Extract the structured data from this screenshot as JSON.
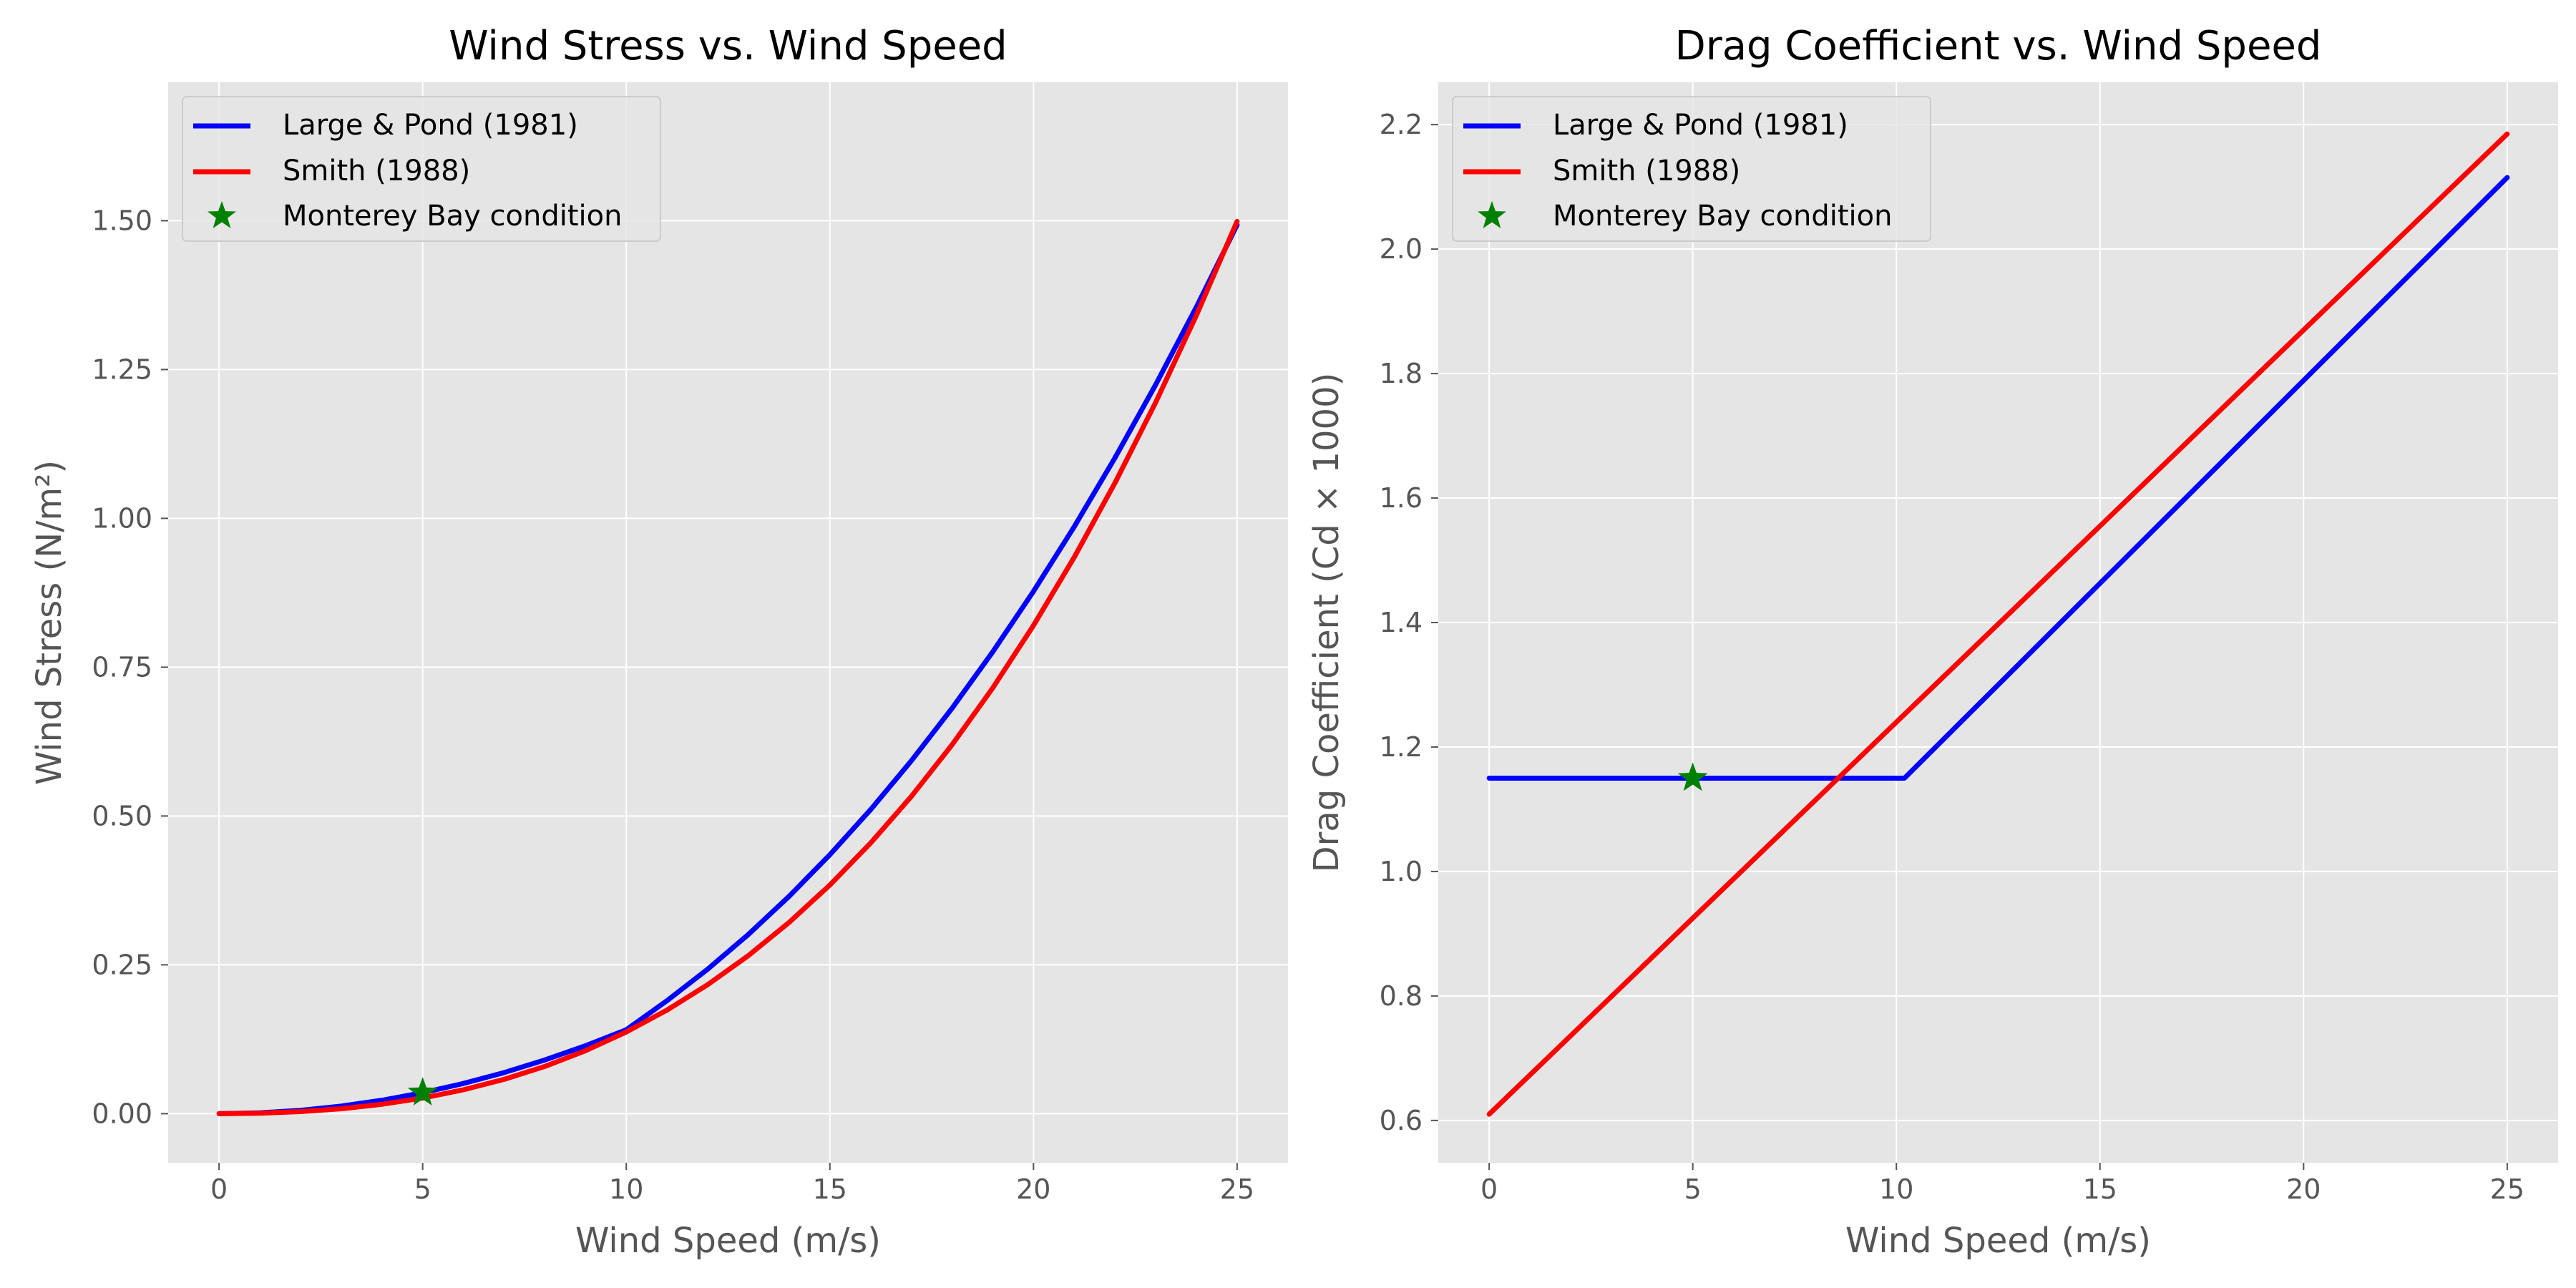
{
  "colors": {
    "panel_background": "#e5e5e5",
    "grid": "#ffffff",
    "tick_text": "#555555",
    "label_text": "#555555",
    "title_text": "#000000",
    "series_large_pond": "#0000ff",
    "series_smith": "#ff0000",
    "marker": "#008000"
  },
  "chart_data": [
    {
      "type": "line",
      "title": "Wind Stress vs. Wind Speed",
      "xlabel": "Wind Speed (m/s)",
      "ylabel": "Wind Stress (N/m²)",
      "xlim": [
        -1.25,
        26.25
      ],
      "ylim": [
        -0.0825,
        1.7325
      ],
      "xticks": [
        0,
        5,
        10,
        15,
        20,
        25
      ],
      "xtick_labels": [
        "0",
        "5",
        "10",
        "15",
        "20",
        "25"
      ],
      "yticks": [
        0,
        0.25,
        0.5,
        0.75,
        1.0,
        1.25,
        1.5
      ],
      "ytick_labels": [
        "0.00",
        "0.25",
        "0.50",
        "0.75",
        "1.00",
        "1.25",
        "1.50"
      ],
      "grid": true,
      "legend_position": "top-left",
      "series": [
        {
          "name": "Large & Pond (1981)",
          "color": "#0000ff",
          "x": [
            0,
            1,
            2,
            3,
            4,
            5,
            6,
            7,
            8,
            9,
            10,
            11,
            12,
            13,
            14,
            15,
            16,
            17,
            18,
            19,
            20,
            21,
            22,
            23,
            24,
            25
          ],
          "y": [
            0,
            0.0014,
            0.0056,
            0.0127,
            0.0225,
            0.0352,
            0.0507,
            0.069,
            0.0902,
            0.1141,
            0.1409,
            0.1898,
            0.2428,
            0.3012,
            0.3652,
            0.435,
            0.5107,
            0.5927,
            0.681,
            0.7758,
            0.8774,
            0.9859,
            1.1016,
            1.2245,
            1.3549,
            1.4929
          ]
        },
        {
          "name": "Smith (1988)",
          "color": "#ff0000",
          "x": [
            0,
            1,
            2,
            3,
            4,
            5,
            6,
            7,
            8,
            9,
            10,
            11,
            12,
            13,
            14,
            15,
            16,
            17,
            18,
            19,
            20,
            21,
            22,
            23,
            24,
            25
          ],
          "y": [
            0,
            0.0008,
            0.0034,
            0.0083,
            0.0158,
            0.0262,
            0.0401,
            0.0577,
            0.0794,
            0.1058,
            0.1372,
            0.174,
            0.2167,
            0.2656,
            0.3213,
            0.3841,
            0.4545,
            0.5328,
            0.6196,
            0.7152,
            0.8201,
            0.9346,
            1.0594,
            1.1947,
            1.341,
            1.4988
          ]
        },
        {
          "name": "Monterey Bay condition",
          "color": "#008000",
          "type": "scatter",
          "marker": "star",
          "x": [
            5
          ],
          "y": [
            0.0352
          ]
        }
      ]
    },
    {
      "type": "line",
      "title": "Drag Coefficient vs. Wind Speed",
      "xlabel": "Wind Speed (m/s)",
      "ylabel": "Drag Coefficient (Cd × 1000)",
      "xlim": [
        -1.25,
        26.25
      ],
      "ylim": [
        0.532,
        2.268
      ],
      "xticks": [
        0,
        5,
        10,
        15,
        20,
        25
      ],
      "xtick_labels": [
        "0",
        "5",
        "10",
        "15",
        "20",
        "25"
      ],
      "yticks": [
        0.6,
        0.8,
        1.0,
        1.2,
        1.4,
        1.6,
        1.8,
        2.0,
        2.2
      ],
      "ytick_labels": [
        "0.6",
        "0.8",
        "1.0",
        "1.2",
        "1.4",
        "1.6",
        "1.8",
        "2.0",
        "2.2"
      ],
      "grid": true,
      "legend_position": "top-left",
      "series": [
        {
          "name": "Large & Pond (1981)",
          "color": "#0000ff",
          "x": [
            0,
            10.2,
            25
          ],
          "y": [
            1.15,
            1.15,
            2.115
          ]
        },
        {
          "name": "Smith (1988)",
          "color": "#ff0000",
          "x": [
            0,
            25
          ],
          "y": [
            0.61,
            2.185
          ]
        },
        {
          "name": "Monterey Bay condition",
          "color": "#008000",
          "type": "scatter",
          "marker": "star",
          "x": [
            5
          ],
          "y": [
            1.15
          ]
        }
      ]
    }
  ]
}
